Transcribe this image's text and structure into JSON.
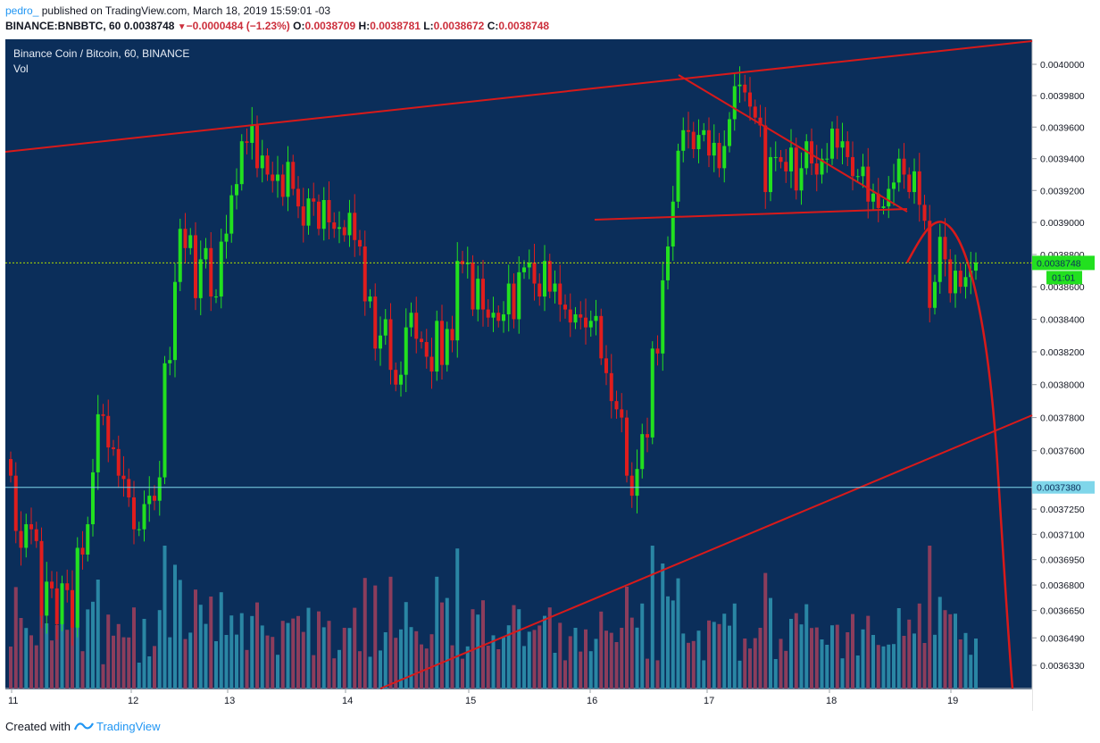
{
  "header": {
    "user": "pedro_",
    "published": "published on TradingView.com, March 18, 2019 15:59:01 -03",
    "symbol": "BINANCE:BNBBTC, 60",
    "last": "0.0038748",
    "change": "−0.0000484 (−1.23%)",
    "o_label": "O:",
    "o": "0.0038709",
    "h_label": "H:",
    "h": "0.0038781",
    "l_label": "L:",
    "l": "0.0038672",
    "c_label": "C:",
    "c": "0.0038748"
  },
  "colors": {
    "background": "#0b2e5a",
    "up": "#22e01f",
    "down": "#e01d1d",
    "drawing": "#d81a1a",
    "price_line": "#b0dd00",
    "horizontal_line": "#7fd6ea",
    "vol_up": "#2a86a4",
    "vol_down": "#8c3d5c"
  },
  "chart_data": {
    "type": "candlestick",
    "title": "Binance Coin / Bitcoin, 60, BINANCE",
    "volume_label": "Vol",
    "x_ticks": [
      "11",
      "12",
      "13",
      "14",
      "15",
      "16",
      "17",
      "18",
      "19"
    ],
    "y_ticks": [
      "0.0040000",
      "0.0039800",
      "0.0039600",
      "0.0039400",
      "0.0039200",
      "0.0039000",
      "0.0038800",
      "0.0038600",
      "0.0038400",
      "0.0038200",
      "0.0038000",
      "0.0037800",
      "0.0037600",
      "0.0037400",
      "0.0037250",
      "0.0037100",
      "0.0036950",
      "0.0036800",
      "0.0036650",
      "0.0036490",
      "0.0036330"
    ],
    "y_scale": "logarithmic",
    "current_price_label": "0.0038748",
    "countdown_label": "01:01",
    "horizontal_line_label": "0.0037380",
    "closes": [
      0.003745,
      0.003712,
      0.003702,
      0.003716,
      0.003713,
      0.003706,
      0.003662,
      0.003682,
      0.003678,
      0.003657,
      0.003681,
      0.003677,
      0.003655,
      0.003702,
      0.003698,
      0.003716,
      0.003747,
      0.003782,
      0.003781,
      0.003762,
      0.003761,
      0.003745,
      0.003743,
      0.003732,
      0.003713,
      0.003713,
      0.003728,
      0.003733,
      0.00373,
      0.003744,
      0.003813,
      0.003815,
      0.003863,
      0.003896,
      0.003884,
      0.003892,
      0.003853,
      0.003877,
      0.003884,
      0.003854,
      0.003854,
      0.003888,
      0.003893,
      0.003917,
      0.003924,
      0.003951,
      0.00395,
      0.003961,
      0.003934,
      0.003942,
      0.00393,
      0.003926,
      0.00393,
      0.003916,
      0.003938,
      0.003921,
      0.00391,
      0.003898,
      0.003915,
      0.003913,
      0.003896,
      0.003914,
      0.0039,
      0.003896,
      0.003897,
      0.003892,
      0.003906,
      0.003889,
      0.003885,
      0.003851,
      0.003854,
      0.003822,
      0.00383,
      0.00384,
      0.003809,
      0.0038,
      0.003806,
      0.003835,
      0.003844,
      0.003828,
      0.003826,
      0.003817,
      0.003808,
      0.003839,
      0.003812,
      0.003834,
      0.003827,
      0.003876,
      0.003874,
      0.003875,
      0.003846,
      0.003865,
      0.003846,
      0.003841,
      0.003844,
      0.003839,
      0.003843,
      0.003862,
      0.00384,
      0.003869,
      0.003872,
      0.003875,
      0.003862,
      0.003854,
      0.003876,
      0.003857,
      0.003862,
      0.003849,
      0.003846,
      0.003838,
      0.003843,
      0.003841,
      0.003835,
      0.003839,
      0.003842,
      0.003816,
      0.003807,
      0.00379,
      0.003785,
      0.00378,
      0.003745,
      0.003733,
      0.003749,
      0.00377,
      0.003768,
      0.003822,
      0.003819,
      0.003864,
      0.003885,
      0.003913,
      0.003945,
      0.003958,
      0.003957,
      0.003946,
      0.003955,
      0.003958,
      0.003942,
      0.00395,
      0.003934,
      0.003948,
      0.003965,
      0.003986,
      0.003987,
      0.003982,
      0.003973,
      0.003966,
      0.003961,
      0.003919,
      0.003941,
      0.003941,
      0.003938,
      0.003932,
      0.003947,
      0.00392,
      0.003934,
      0.003951,
      0.003937,
      0.00393,
      0.00394,
      0.00394,
      0.003959,
      0.003947,
      0.003951,
      0.003941,
      0.003929,
      0.003929,
      0.003935,
      0.003913,
      0.003918,
      0.003909,
      0.00391,
      0.003921,
      0.003925,
      0.00394,
      0.00393,
      0.003919,
      0.003932,
      0.003911,
      0.003901,
      0.003847,
      0.003863,
      0.003891,
      0.003877,
      0.003856,
      0.00387,
      0.00386,
      0.003866,
      0.00387,
      0.003875
    ]
  }
}
